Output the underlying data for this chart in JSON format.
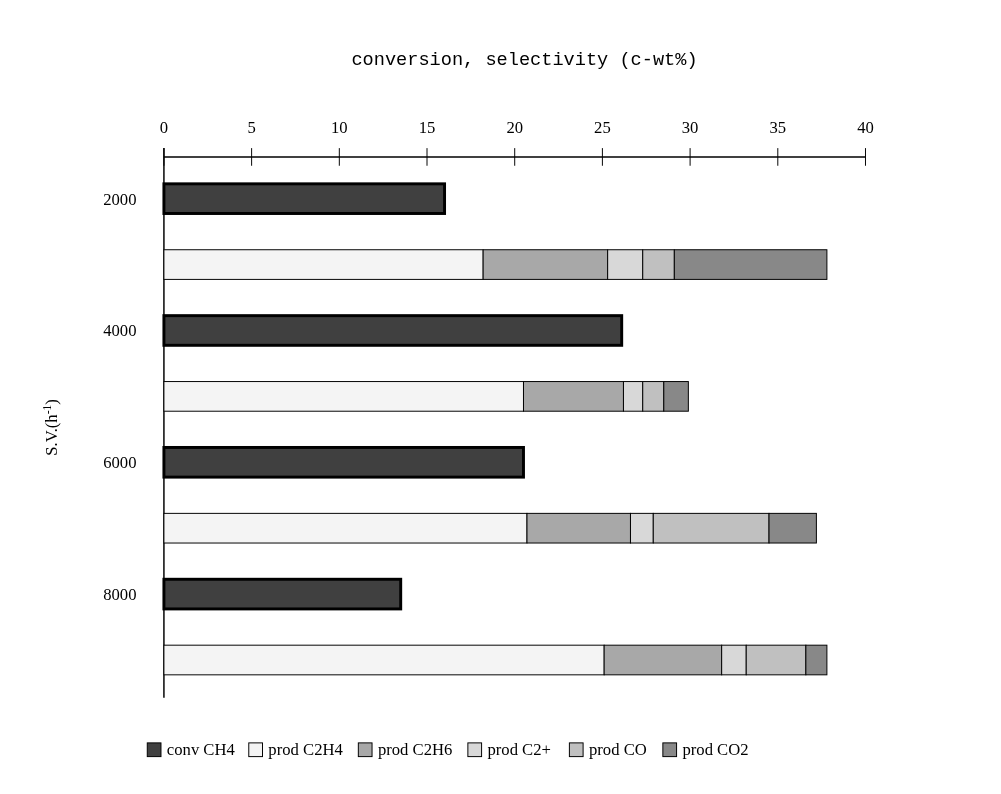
{
  "chart_data": {
    "type": "bar",
    "orientation": "horizontal",
    "stacked": true,
    "xlabel": "conversion, selectivity (c-wt%)",
    "ylabel": "S.V.(h$^{-1}$)",
    "categories": [
      "2000",
      null,
      "4000",
      null,
      "6000",
      null,
      "8000",
      null
    ],
    "xlim": [
      0,
      40
    ],
    "xticks": [
      0,
      5,
      10,
      15,
      20,
      25,
      30,
      35,
      40
    ],
    "legend": "bottom",
    "series": [
      {
        "name": "conv CH4",
        "color": "#404040",
        "values": [
          16.0,
          null,
          26.1,
          null,
          20.5,
          null,
          13.5,
          null
        ]
      },
      {
        "name": "prod C2H4",
        "color": "#f4f4f4",
        "values": [
          null,
          18.2,
          null,
          20.5,
          null,
          20.7,
          null,
          25.1
        ]
      },
      {
        "name": "prod C2H6",
        "color": "#a8a8a8",
        "values": [
          null,
          7.1,
          null,
          5.7,
          null,
          5.9,
          null,
          6.7
        ]
      },
      {
        "name": "prod C2+",
        "color": "#d8d8d8",
        "values": [
          null,
          2.0,
          null,
          1.1,
          null,
          1.3,
          null,
          1.4
        ]
      },
      {
        "name": "prod CO",
        "color": "#c0c0c0",
        "values": [
          null,
          1.8,
          null,
          1.2,
          null,
          6.6,
          null,
          3.4
        ]
      },
      {
        "name": "prod CO2",
        "color": "#888888",
        "values": [
          null,
          8.7,
          null,
          1.4,
          null,
          2.7,
          null,
          1.2
        ]
      }
    ]
  }
}
